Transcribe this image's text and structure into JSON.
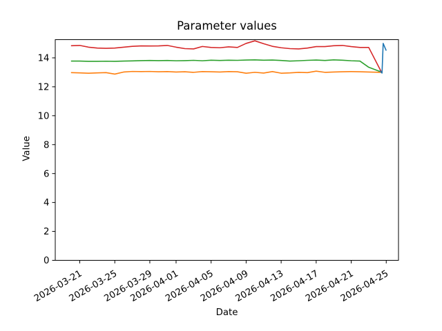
{
  "figure": {
    "background": "#ffffff",
    "frame_color": "#000000"
  },
  "chart_data": {
    "type": "line",
    "title": "Parameter values",
    "xlabel": "Date",
    "ylabel": "Value",
    "grid": false,
    "legend": "none",
    "x_unit": "days_since_2026-03-20",
    "xlim": [
      -1.8,
      37.4
    ],
    "ylim": [
      0,
      15.26
    ],
    "x_tick_rotation": 30,
    "y_ticks": [
      0,
      2,
      4,
      6,
      8,
      10,
      12,
      14
    ],
    "x_ticks": [
      {
        "offset": 1,
        "label": "2026-03-21"
      },
      {
        "offset": 5,
        "label": "2026-03-25"
      },
      {
        "offset": 9,
        "label": "2026-03-29"
      },
      {
        "offset": 12,
        "label": "2026-04-01"
      },
      {
        "offset": 16,
        "label": "2026-04-05"
      },
      {
        "offset": 20,
        "label": "2026-04-09"
      },
      {
        "offset": 24,
        "label": "2026-04-13"
      },
      {
        "offset": 28,
        "label": "2026-04-17"
      },
      {
        "offset": 32,
        "label": "2026-04-21"
      },
      {
        "offset": 36,
        "label": "2026-04-25"
      }
    ],
    "series": [
      {
        "name": "red",
        "color": "#d62728",
        "x": [
          0,
          1,
          2,
          3,
          4,
          5,
          6,
          7,
          8,
          9,
          10,
          11,
          12,
          13,
          14,
          15,
          16,
          17,
          18,
          19,
          20,
          21,
          22,
          23,
          24,
          25,
          26,
          27,
          28,
          29,
          30,
          31,
          32,
          33,
          34,
          35.45
        ],
        "y": [
          14.84,
          14.86,
          14.74,
          14.68,
          14.66,
          14.68,
          14.74,
          14.8,
          14.83,
          14.82,
          14.83,
          14.86,
          14.74,
          14.64,
          14.62,
          14.79,
          14.72,
          14.7,
          14.76,
          14.72,
          15.0,
          15.18,
          14.98,
          14.8,
          14.7,
          14.64,
          14.62,
          14.68,
          14.78,
          14.78,
          14.84,
          14.86,
          14.78,
          14.72,
          14.72,
          13.02
        ]
      },
      {
        "name": "green",
        "color": "#2ca02c",
        "x": [
          0,
          1,
          2,
          3,
          4,
          5,
          6,
          7,
          8,
          9,
          10,
          11,
          12,
          13,
          14,
          15,
          16,
          17,
          18,
          19,
          20,
          21,
          22,
          23,
          24,
          25,
          26,
          27,
          28,
          29,
          30,
          31,
          32,
          33,
          34,
          35.45
        ],
        "y": [
          13.78,
          13.78,
          13.76,
          13.76,
          13.77,
          13.76,
          13.78,
          13.79,
          13.81,
          13.82,
          13.81,
          13.82,
          13.8,
          13.81,
          13.83,
          13.8,
          13.84,
          13.82,
          13.84,
          13.83,
          13.85,
          13.86,
          13.84,
          13.85,
          13.82,
          13.78,
          13.8,
          13.83,
          13.85,
          13.82,
          13.86,
          13.84,
          13.8,
          13.78,
          13.35,
          13.02
        ]
      },
      {
        "name": "orange",
        "color": "#ff7f0e",
        "x": [
          0,
          1,
          2,
          3,
          4,
          5,
          6,
          7,
          8,
          9,
          10,
          11,
          12,
          13,
          14,
          15,
          16,
          17,
          18,
          19,
          20,
          21,
          22,
          23,
          24,
          25,
          26,
          27,
          28,
          29,
          30,
          31,
          32,
          33,
          34,
          35.45
        ],
        "y": [
          12.98,
          12.96,
          12.94,
          12.96,
          12.98,
          12.88,
          13.02,
          13.06,
          13.05,
          13.06,
          13.04,
          13.05,
          13.02,
          13.04,
          13.0,
          13.05,
          13.04,
          13.02,
          13.05,
          13.04,
          12.94,
          13.0,
          12.95,
          13.05,
          12.94,
          12.96,
          13.0,
          12.98,
          13.08,
          13.0,
          13.02,
          13.04,
          13.05,
          13.04,
          13.02,
          13.0
        ]
      },
      {
        "name": "blue",
        "color": "#1f77b4",
        "x": [
          35.25,
          35.52,
          35.65,
          36.0
        ],
        "y": [
          13.12,
          12.95,
          15.0,
          14.5
        ]
      }
    ]
  }
}
